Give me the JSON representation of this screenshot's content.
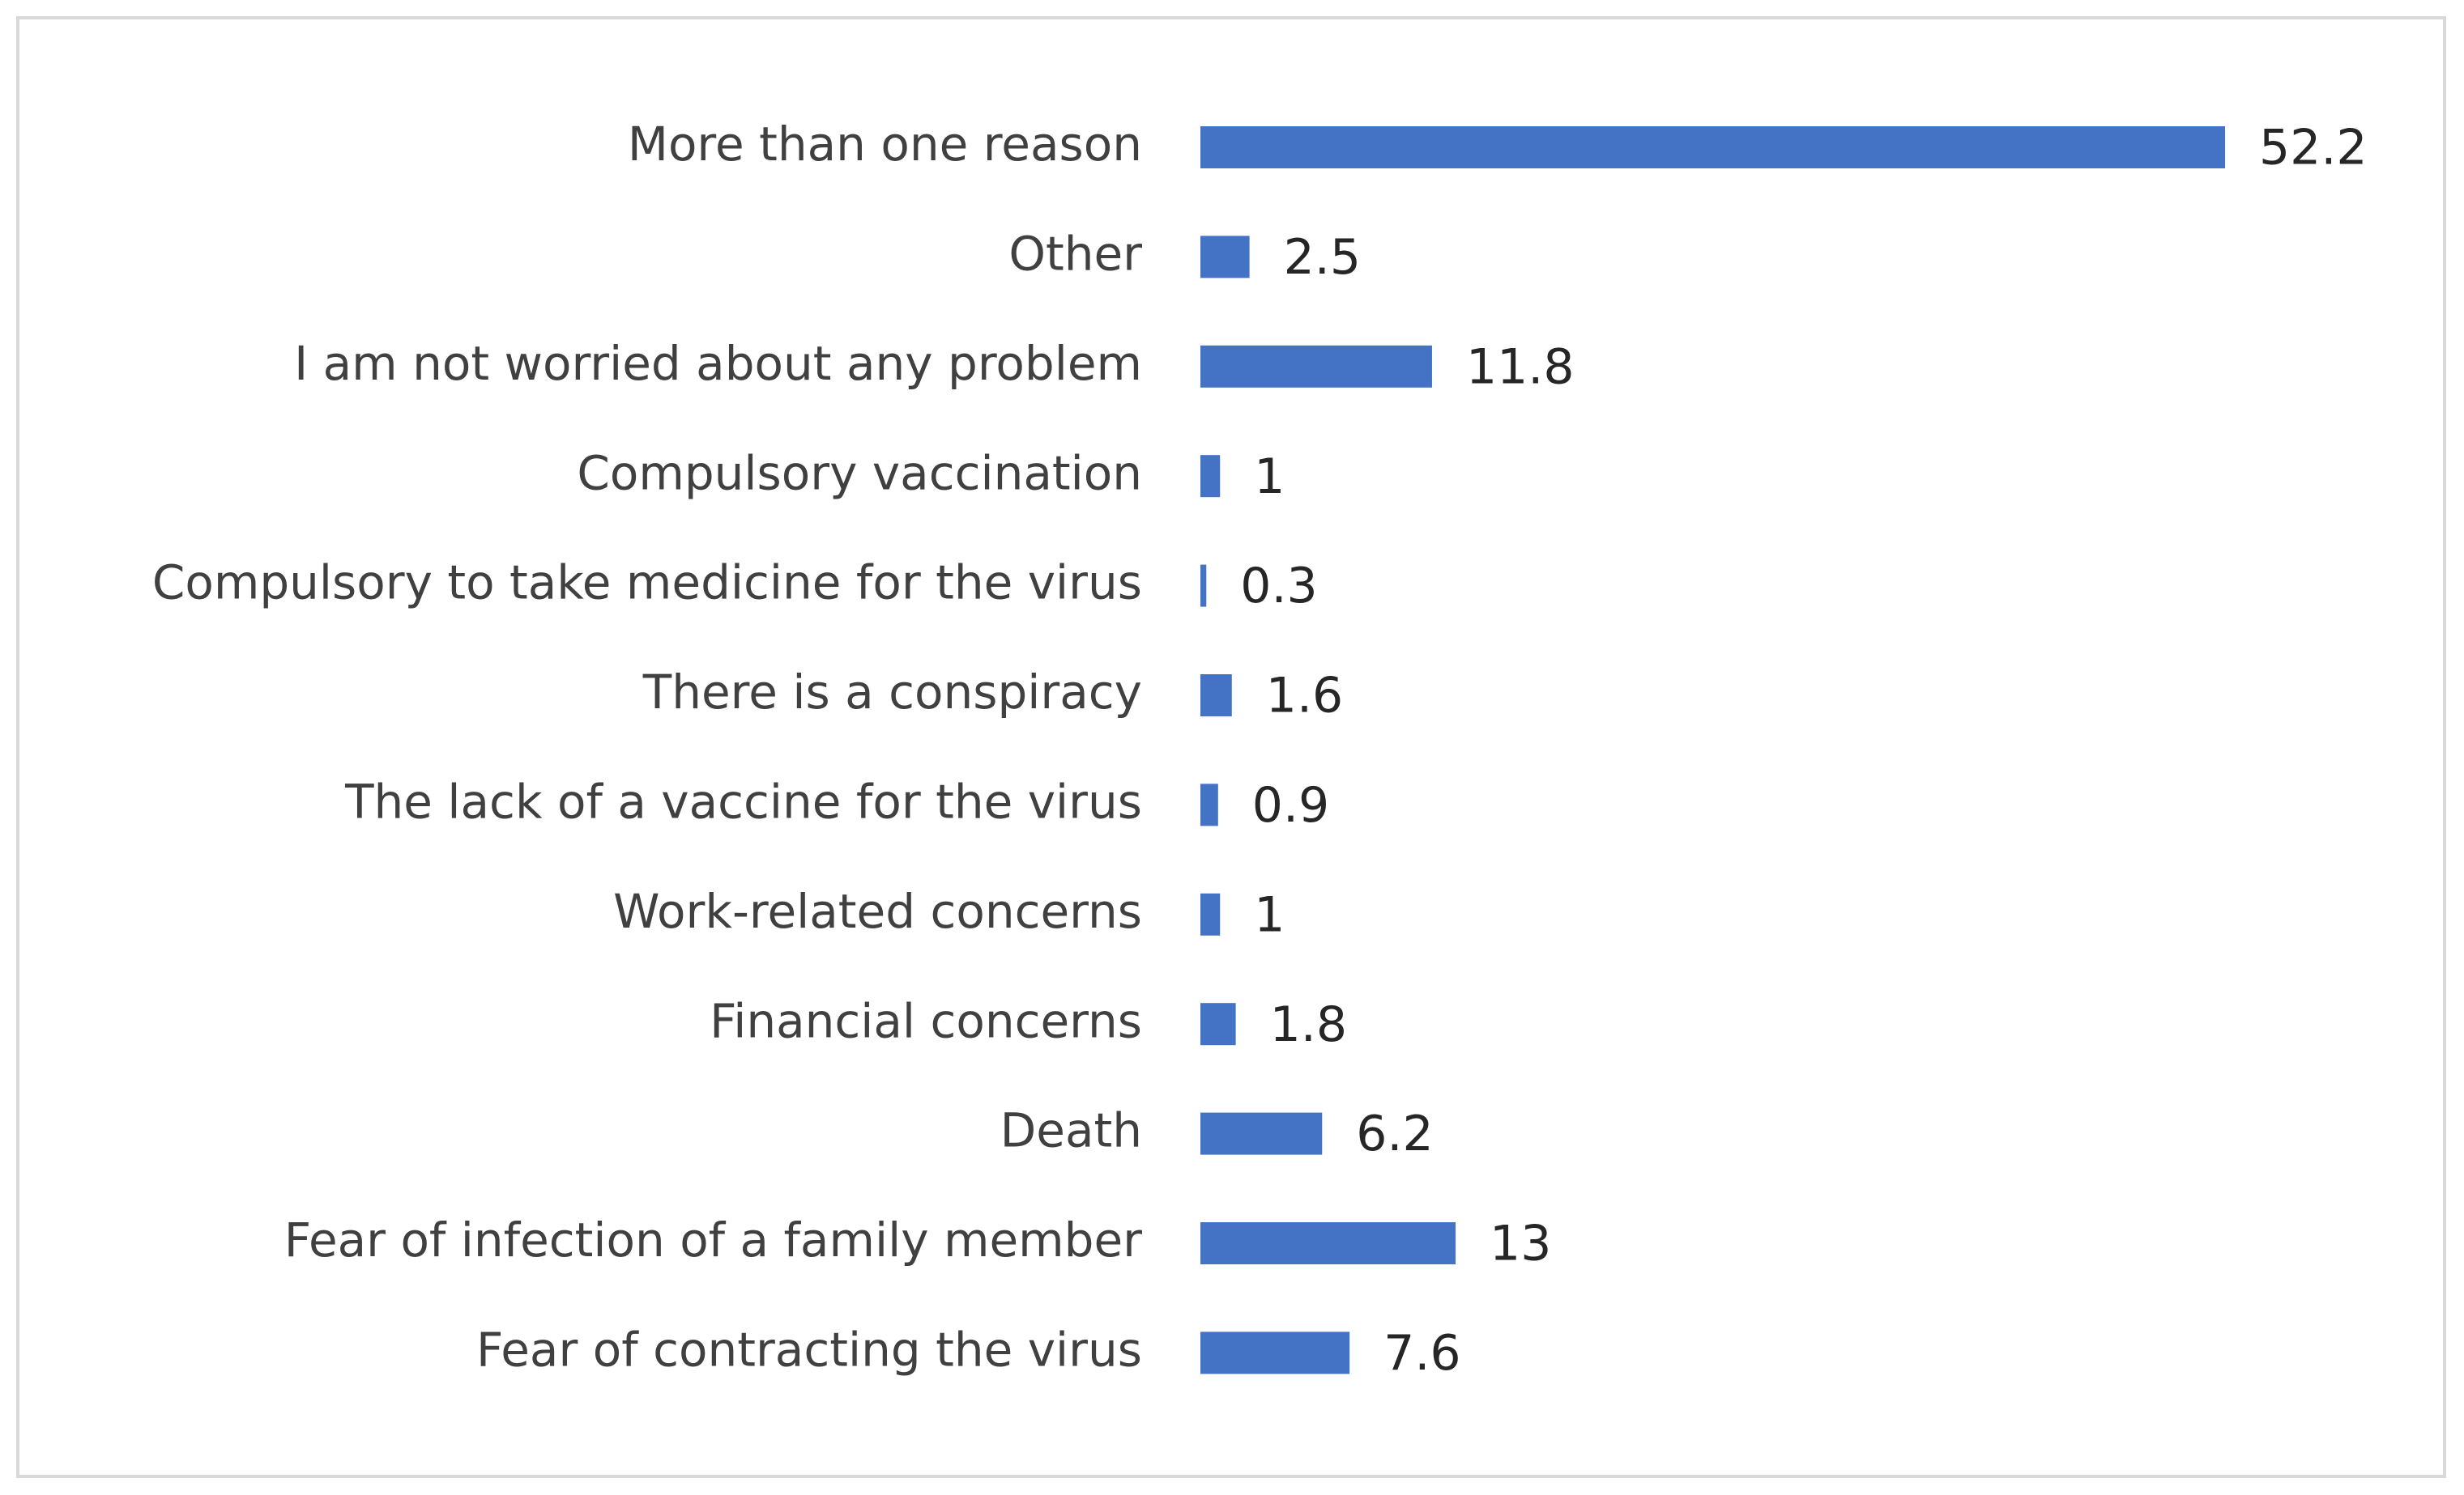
{
  "chart_data": {
    "type": "bar",
    "orientation": "horizontal",
    "title": "",
    "xlabel": "",
    "ylabel": "",
    "xlim": [
      0,
      52.2
    ],
    "grid": false,
    "legend": "none",
    "bar_color": "#4472C4",
    "frame_color": "#D9D9D9",
    "categories": [
      "More than one reason",
      "Other",
      "I am not worried about any problem",
      "Compulsory vaccination",
      "Compulsory to take medicine for the virus",
      "There is a conspiracy",
      "The lack of a vaccine for the virus",
      "Work-related concerns",
      "Financial concerns",
      "Death",
      "Fear of infection of a family member",
      "Fear of contracting the virus"
    ],
    "values": [
      52.2,
      2.5,
      11.8,
      1,
      0.3,
      1.6,
      0.9,
      1,
      1.8,
      6.2,
      13,
      7.6
    ],
    "value_labels": [
      "52.2",
      "2.5",
      "11.8",
      "1",
      "0.3",
      "1.6",
      "0.9",
      "1",
      "1.8",
      "6.2",
      "13",
      "7.6"
    ]
  }
}
